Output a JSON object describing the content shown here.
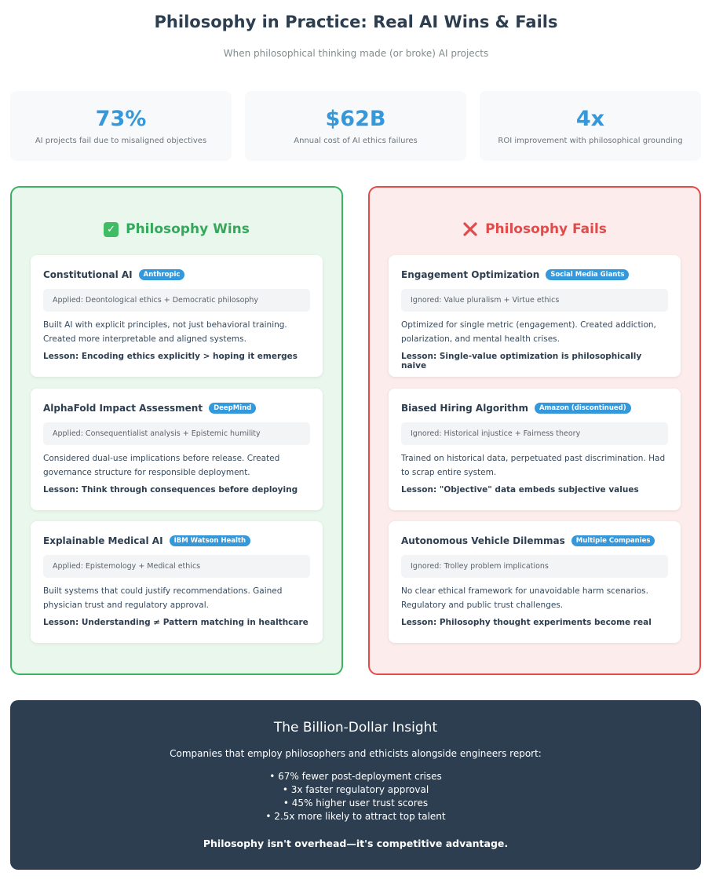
{
  "header": {
    "title": "Philosophy in Practice: Real AI Wins & Fails",
    "subtitle": "When philosophical thinking made (or broke) AI projects"
  },
  "stats": [
    {
      "value": "73%",
      "label": "AI projects fail due to misaligned objectives"
    },
    {
      "value": "$62B",
      "label": "Annual cost of AI ethics failures"
    },
    {
      "value": "4x",
      "label": "ROI improvement with philosophical grounding"
    }
  ],
  "wins": {
    "heading": "Philosophy Wins",
    "icon": "check-icon",
    "cases": [
      {
        "title": "Constitutional AI",
        "badge": "Anthropic",
        "applied": "Applied: Deontological ethics + Democratic philosophy",
        "description": "Built AI with explicit principles, not just behavioral training. Created more interpretable and aligned systems.",
        "lesson": "Lesson: Encoding ethics explicitly > hoping it emerges"
      },
      {
        "title": "AlphaFold Impact Assessment",
        "badge": "DeepMind",
        "applied": "Applied: Consequentialist analysis + Epistemic humility",
        "description": "Considered dual-use implications before release. Created governance structure for responsible deployment.",
        "lesson": "Lesson: Think through consequences before deploying"
      },
      {
        "title": "Explainable Medical AI",
        "badge": "IBM Watson Health",
        "applied": "Applied: Epistemology + Medical ethics",
        "description": "Built systems that could justify recommendations. Gained physician trust and regulatory approval.",
        "lesson": "Lesson: Understanding ≠ Pattern matching in healthcare"
      }
    ]
  },
  "fails": {
    "heading": "Philosophy Fails",
    "icon": "cross-icon",
    "cases": [
      {
        "title": "Engagement Optimization",
        "badge": "Social Media Giants",
        "applied": "Ignored: Value pluralism + Virtue ethics",
        "description": "Optimized for single metric (engagement). Created addiction, polarization, and mental health crises.",
        "lesson": "Lesson: Single-value optimization is philosophically naive"
      },
      {
        "title": "Biased Hiring Algorithm",
        "badge": "Amazon (discontinued)",
        "applied": "Ignored: Historical injustice + Fairness theory",
        "description": "Trained on historical data, perpetuated past discrimination. Had to scrap entire system.",
        "lesson": "Lesson: \"Objective\" data embeds subjective values"
      },
      {
        "title": "Autonomous Vehicle Dilemmas",
        "badge": "Multiple Companies",
        "applied": "Ignored: Trolley problem implications",
        "description": "No clear ethical framework for unavoidable harm scenarios. Regulatory and public trust challenges.",
        "lesson": "Lesson: Philosophy thought experiments become real"
      }
    ]
  },
  "insight": {
    "title": "The Billion-Dollar Insight",
    "intro": "Companies that employ philosophers and ethicists alongside engineers report:",
    "items": [
      "• 67% fewer post-deployment crises",
      "• 3x faster regulatory approval",
      "• 45% higher user trust scores",
      "• 2.5x more likely to attract top talent"
    ],
    "closing": "Philosophy isn't overhead—it's competitive advantage."
  },
  "colors": {
    "accent": "#3498db",
    "win": "#35a85c",
    "fail": "#e04b4b",
    "dark": "#2c3e50"
  }
}
